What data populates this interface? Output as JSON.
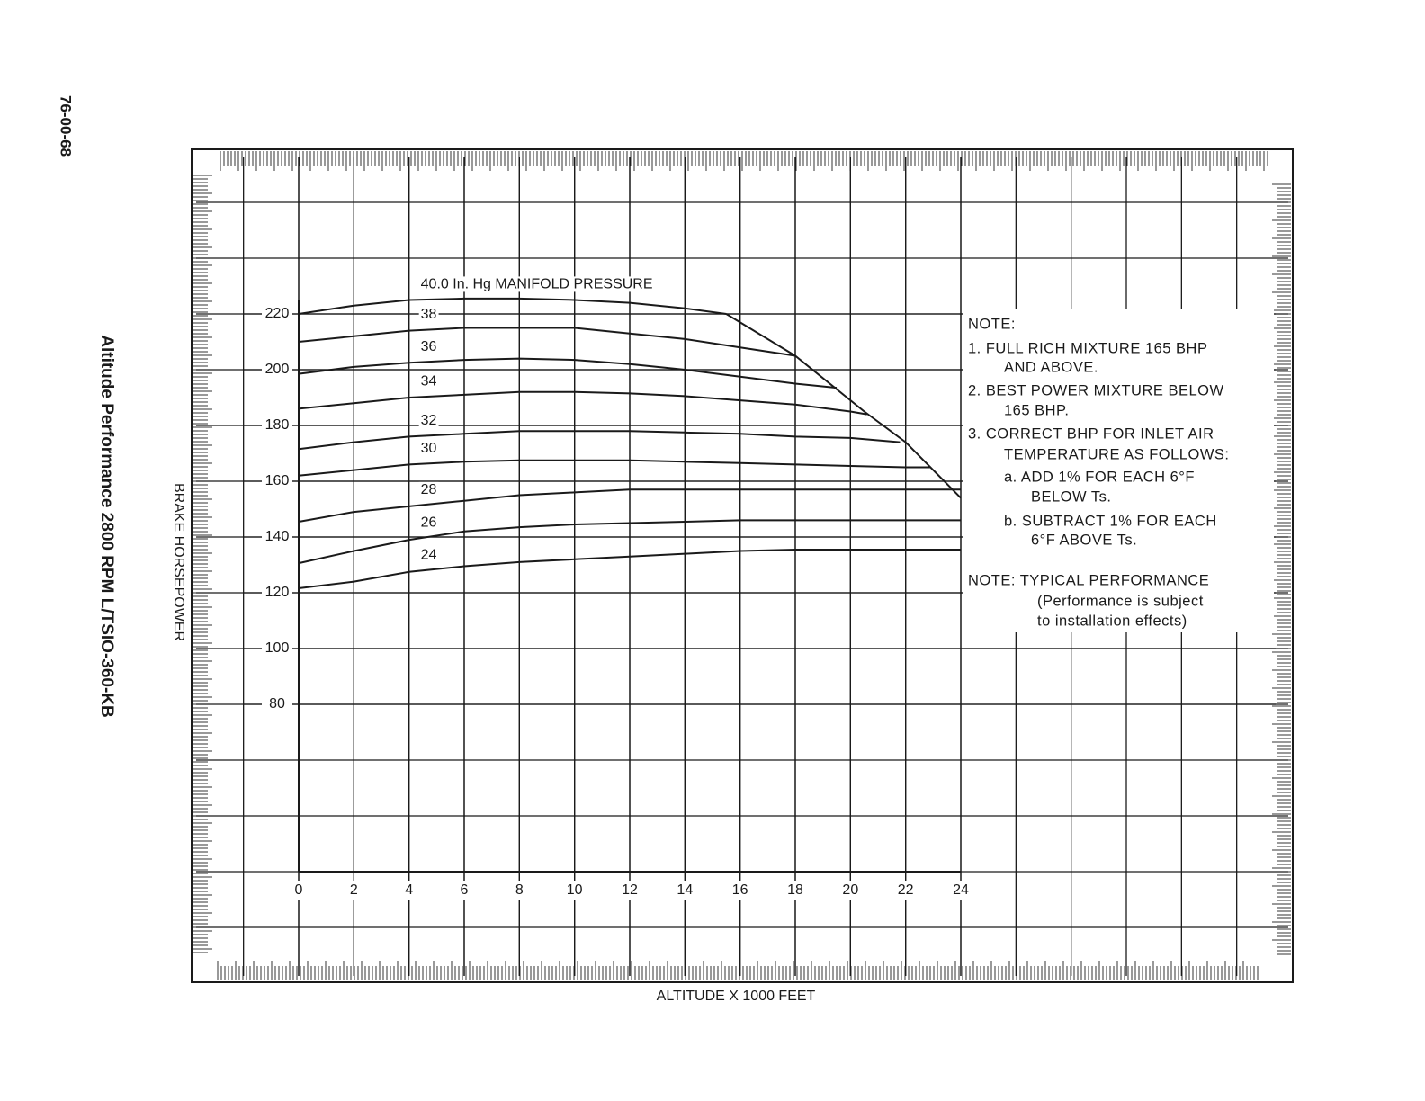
{
  "chart_data": {
    "type": "line",
    "page_number": "76-00-68",
    "title": "Altitude Performance 2800 RPM L/TSIO-360-KB",
    "y_label": "BRAKE HORSEPOWER",
    "x_label": "ALTITUDE X 1000 FEET",
    "xlim": [
      0,
      24
    ],
    "ylim": [
      20,
      220
    ],
    "xticks": [
      0,
      2,
      4,
      6,
      8,
      10,
      12,
      14,
      16,
      18,
      20,
      22,
      24
    ],
    "yticks": [
      80,
      100,
      120,
      140,
      160,
      180,
      200,
      220
    ],
    "grid": true,
    "color": "#1a1a1a",
    "series": [
      {
        "name": "40.0 In. Hg MANIFOLD PRESSURE",
        "x": [
          0,
          2,
          4,
          6,
          8,
          10,
          12,
          14,
          15.5
        ],
        "values": [
          220,
          223,
          225,
          225.5,
          225.5,
          225,
          224,
          222,
          220
        ]
      },
      {
        "name": "38",
        "x": [
          0,
          2,
          4,
          6,
          8,
          10,
          12,
          14,
          16,
          18
        ],
        "values": [
          210,
          212,
          214,
          215,
          215,
          215,
          213,
          211,
          208,
          205
        ]
      },
      {
        "name": "36",
        "x": [
          0,
          2,
          4,
          6,
          8,
          10,
          12,
          14,
          16,
          18,
          19.5
        ],
        "values": [
          198.5,
          201,
          202.5,
          203.5,
          204,
          203.5,
          202,
          200,
          197.5,
          195,
          193.5
        ]
      },
      {
        "name": "34",
        "x": [
          0,
          2,
          4,
          6,
          8,
          10,
          12,
          14,
          16,
          18,
          20,
          20.6
        ],
        "values": [
          186,
          188,
          190,
          191,
          192,
          192,
          191.5,
          190.5,
          189,
          187.5,
          185,
          184
        ]
      },
      {
        "name": "32",
        "x": [
          0,
          2,
          4,
          6,
          8,
          10,
          12,
          14,
          16,
          18,
          20,
          21.8
        ],
        "values": [
          171.5,
          174,
          176,
          177,
          178,
          178,
          178,
          177.5,
          177,
          176,
          175.5,
          174
        ]
      },
      {
        "name": "30",
        "x": [
          0,
          2,
          4,
          6,
          8,
          10,
          12,
          14,
          16,
          18,
          20,
          22,
          22.9
        ],
        "values": [
          162,
          164,
          166,
          167,
          167.5,
          167.5,
          167.5,
          167,
          166.5,
          166,
          165.5,
          165,
          165
        ]
      },
      {
        "name": "28",
        "x": [
          0,
          2,
          4,
          6,
          8,
          10,
          12,
          14,
          16,
          18,
          20,
          22,
          24
        ],
        "values": [
          145.5,
          149,
          151,
          153,
          155,
          156,
          157,
          157,
          157,
          157,
          157,
          157,
          157
        ]
      },
      {
        "name": "26",
        "x": [
          0,
          2,
          4,
          6,
          8,
          10,
          12,
          14,
          16,
          18,
          20,
          22,
          24
        ],
        "values": [
          130.6,
          135,
          139,
          142,
          143.5,
          144.5,
          145,
          145.5,
          146,
          146,
          146,
          146,
          146
        ]
      },
      {
        "name": "24",
        "x": [
          0,
          2,
          4,
          6,
          8,
          10,
          12,
          14,
          16,
          18,
          20,
          22,
          24
        ],
        "values": [
          121.6,
          124,
          127.5,
          129.5,
          131,
          132,
          133,
          134,
          135,
          135.5,
          135.5,
          135.5,
          135.5
        ]
      },
      {
        "x": [
          15.5,
          18,
          20.5,
          22,
          24
        ],
        "values": [
          220,
          205,
          185,
          174,
          154
        ]
      }
    ],
    "notes": [
      "NOTE:",
      "1. FULL RICH MIXTURE 165 BHP",
      "AND ABOVE.",
      "2. BEST POWER MIXTURE BELOW",
      "165 BHP.",
      "3. CORRECT BHP FOR INLET AIR",
      "TEMPERATURE AS FOLLOWS:",
      "a. ADD 1% FOR EACH 6°F",
      "BELOW Ts.",
      "b. SUBTRACT 1% FOR EACH",
      "6°F ABOVE Ts.",
      "NOTE: TYPICAL PERFORMANCE",
      "(Performance is subject",
      "to installation effects)"
    ]
  }
}
